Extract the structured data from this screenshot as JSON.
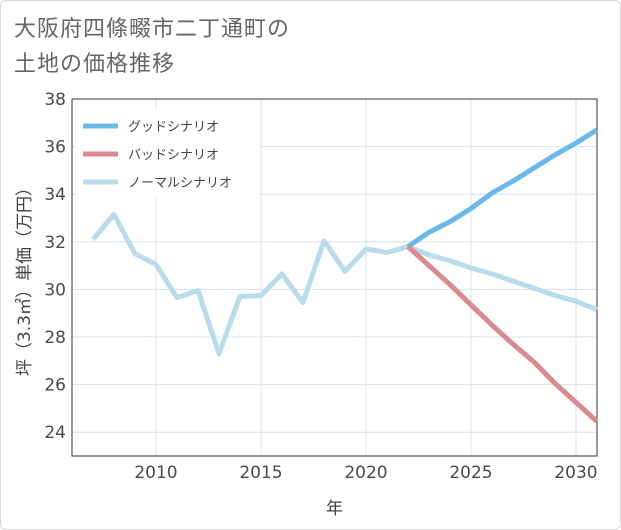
{
  "chart_title_line1": "大阪府四條畷市二丁通町の",
  "chart_title_line2": "土地の価格推移",
  "chart_data": {
    "type": "line",
    "title": "大阪府四條畷市二丁通町の土地の価格推移",
    "xlabel": "年",
    "ylabel": "坪（3.3㎡）単価（万円）",
    "xlim": [
      2006,
      2031
    ],
    "ylim": [
      23,
      38
    ],
    "xticks": [
      2010,
      2015,
      2020,
      2025,
      2030
    ],
    "yticks": [
      24,
      26,
      28,
      30,
      32,
      34,
      36,
      38
    ],
    "grid": true,
    "legend_position": "top-left",
    "series": [
      {
        "name": "グッドシナリオ",
        "color": "#6bb8ea",
        "x": [
          2022,
          2023,
          2024,
          2025,
          2026,
          2027,
          2028,
          2029,
          2030,
          2031
        ],
        "values": [
          31.8,
          32.4,
          32.85,
          33.4,
          34.05,
          34.55,
          35.1,
          35.65,
          36.15,
          36.7
        ]
      },
      {
        "name": "バッドシナリオ",
        "color": "#d98b91",
        "x": [
          2022,
          2023,
          2024,
          2025,
          2026,
          2027,
          2028,
          2029,
          2030,
          2031
        ],
        "values": [
          31.8,
          31.0,
          30.2,
          29.35,
          28.5,
          27.7,
          26.95,
          26.05,
          25.25,
          24.45
        ]
      },
      {
        "name": "ノーマルシナリオ",
        "color": "#b8dcea",
        "x": [
          2007,
          2008,
          2009,
          2010,
          2011,
          2012,
          2013,
          2014,
          2015,
          2016,
          2017,
          2018,
          2019,
          2020,
          2021,
          2022,
          2023,
          2024,
          2025,
          2026,
          2027,
          2028,
          2029,
          2030,
          2031
        ],
        "values": [
          32.1,
          33.15,
          31.5,
          31.05,
          29.65,
          29.95,
          27.3,
          29.7,
          29.75,
          30.65,
          29.45,
          32.05,
          30.75,
          31.7,
          31.55,
          31.8,
          31.45,
          31.2,
          30.9,
          30.65,
          30.35,
          30.05,
          29.75,
          29.5,
          29.15
        ]
      }
    ]
  }
}
